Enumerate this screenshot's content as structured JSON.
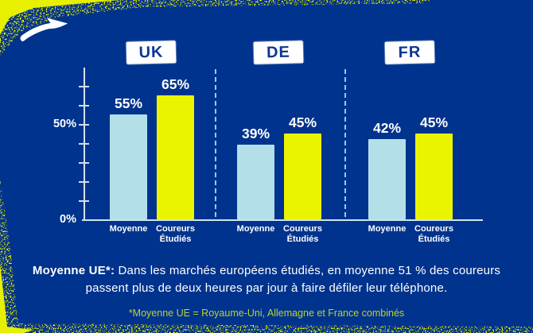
{
  "brand": {
    "logo": "brooks-swoosh"
  },
  "chart_data": {
    "type": "bar",
    "categories": [
      "UK",
      "DE",
      "FR"
    ],
    "series": [
      {
        "name": "Moyenne",
        "values": [
          55,
          39,
          42
        ],
        "color": "#b3dfe8"
      },
      {
        "name": "Coureurs Étudiés",
        "values": [
          65,
          45,
          45
        ],
        "color": "#eaf400"
      }
    ],
    "value_suffix": "%",
    "axis": {
      "ylim": [
        0,
        80
      ],
      "tick_values": [
        10,
        20,
        30,
        40,
        50,
        60,
        70
      ],
      "labeled_ticks": [
        {
          "value": 50,
          "label": "50%"
        },
        {
          "value": 0,
          "label": "0%"
        }
      ],
      "grid": false
    },
    "legend_position": "none",
    "group_separators": "dashed"
  },
  "caption": {
    "lead": "Moyenne UE*:",
    "body": "Dans les marchés européens étudiés, en moyenne 51 % des coureurs passent plus de deux heures par jour à faire défiler leur téléphone."
  },
  "footnote": {
    "text": "*Moyenne UE = Royaume-Uni, Allemagne et France combinés"
  },
  "colors": {
    "background": "#00338d",
    "bar_average": "#b3dfe8",
    "bar_studied": "#eaf400",
    "axis": "#cfe2ee",
    "separator": "#9fc6e8",
    "text": "#ffffff",
    "footnote_text": "#b9d232",
    "label_box_bg": "#ffffff",
    "label_box_text": "#0d3692",
    "spray": "#e6f000"
  }
}
